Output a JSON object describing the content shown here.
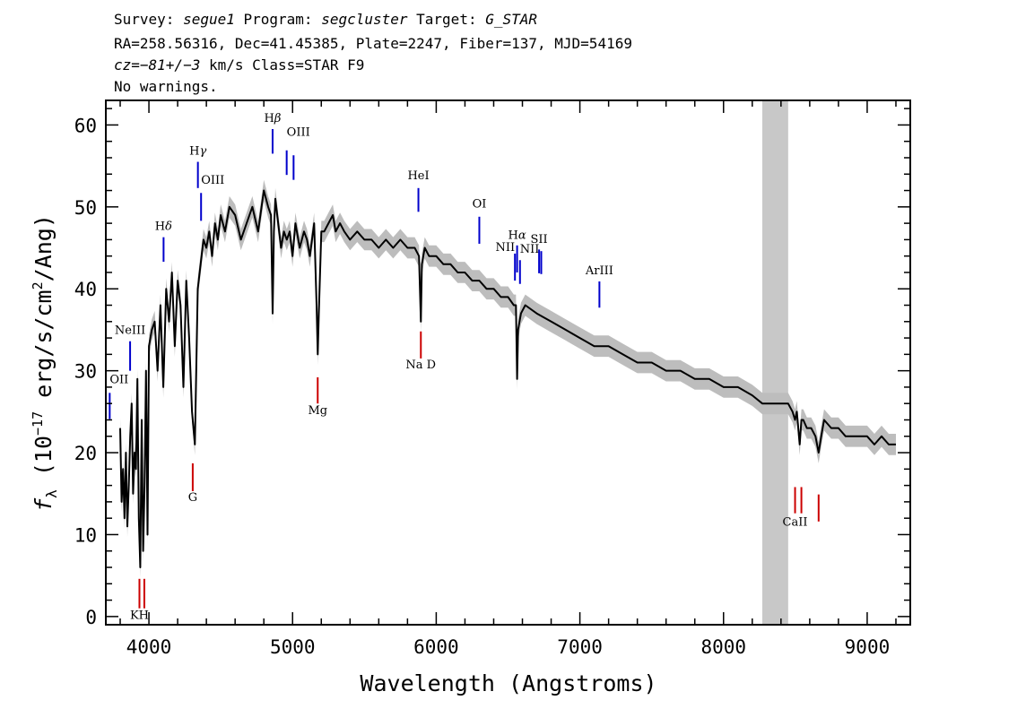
{
  "header": {
    "line1": {
      "a": "Survey: ",
      "b": "segue1",
      "c": " Program: ",
      "d": "segcluster",
      "e": " Target: ",
      "f": "G_STAR"
    },
    "line2": "RA=258.56316, Dec=41.45385, Plate=2247, Fiber=137, MJD=54169",
    "line3": {
      "a": "cz=−81+/−3",
      "b": " km/s Class=STAR F9"
    },
    "line4": "No warnings."
  },
  "colors": {
    "flux": "#000000",
    "error": "#bdbdbd",
    "emission": "#0000cc",
    "absorption": "#cc0000",
    "masked": "#c8c8c8"
  },
  "chart_data": {
    "type": "line",
    "title": "",
    "xlabel": "Wavelength (Angstroms)",
    "ylabel": {
      "f": "f",
      "sub": "λ",
      "a": " (10",
      "sup_exp": "−17",
      "b": " erg/s/cm",
      "sup2": "2",
      "c": "/Ang)"
    },
    "xlim": [
      3700,
      9300
    ],
    "ylim": [
      -1,
      63
    ],
    "xticks": [
      4000,
      5000,
      6000,
      7000,
      8000,
      9000
    ],
    "yticks": [
      0,
      10,
      20,
      30,
      40,
      50,
      60
    ],
    "masked_region": [
      8270,
      8450
    ],
    "series": [
      {
        "x": [
          3800,
          3810,
          3820,
          3830,
          3840,
          3850,
          3860,
          3870,
          3880,
          3890,
          3900,
          3910,
          3920,
          3930,
          3940,
          3950,
          3960,
          3970,
          3980,
          3990,
          4000,
          4020,
          4040,
          4060,
          4080,
          4100,
          4120,
          4140,
          4160,
          4180,
          4200,
          4220,
          4240,
          4260,
          4280,
          4300,
          4320,
          4340,
          4360,
          4380,
          4400,
          4420,
          4440,
          4460,
          4480,
          4500,
          4530,
          4560,
          4600,
          4640,
          4680,
          4720,
          4760,
          4800,
          4830,
          4850,
          4861,
          4870,
          4880,
          4900,
          4920,
          4940,
          4960,
          4980,
          5000,
          5020,
          5050,
          5080,
          5100,
          5120,
          5150,
          5167,
          5175,
          5183,
          5200,
          5220,
          5250,
          5280,
          5300,
          5330,
          5360,
          5400,
          5450,
          5500,
          5550,
          5600,
          5650,
          5700,
          5750,
          5800,
          5850,
          5880,
          5893,
          5900,
          5920,
          5950,
          6000,
          6050,
          6100,
          6150,
          6200,
          6250,
          6300,
          6350,
          6400,
          6450,
          6500,
          6540,
          6555,
          6563,
          6570,
          6590,
          6620,
          6700,
          6800,
          6900,
          7000,
          7100,
          7200,
          7300,
          7400,
          7500,
          7600,
          7700,
          7800,
          7900,
          8000,
          8100,
          8200,
          8270,
          8450,
          8480,
          8498,
          8510,
          8530,
          8542,
          8555,
          8580,
          8610,
          8640,
          8662,
          8680,
          8700,
          8750,
          8800,
          8850,
          8900,
          8950,
          9000,
          9050,
          9100,
          9150,
          9200
        ],
        "y": [
          23,
          14,
          18,
          12,
          20,
          11,
          16,
          22,
          26,
          15,
          20,
          18,
          29,
          12,
          6,
          24,
          8,
          16,
          30,
          10,
          33,
          35,
          36,
          30,
          38,
          28,
          40,
          36,
          42,
          33,
          41,
          38,
          28,
          41,
          34,
          25,
          21,
          40,
          43,
          46,
          45,
          47,
          44,
          48,
          46,
          49,
          47,
          50,
          49,
          46,
          48,
          50,
          47,
          52,
          50,
          49,
          37,
          47,
          51,
          48,
          45,
          47,
          46,
          47,
          44,
          48,
          45,
          47,
          46,
          44,
          48,
          38,
          32,
          37,
          47,
          47,
          48,
          49,
          47,
          48,
          47,
          46,
          47,
          46,
          46,
          45,
          46,
          45,
          46,
          45,
          45,
          44,
          36,
          43,
          45,
          44,
          44,
          43,
          43,
          42,
          42,
          41,
          41,
          40,
          40,
          39,
          39,
          38,
          38,
          29,
          35,
          37,
          38,
          37,
          36,
          35,
          34,
          33,
          33,
          32,
          31,
          31,
          30,
          30,
          29,
          29,
          28,
          28,
          27,
          26,
          26,
          25,
          24,
          25,
          21,
          24,
          24,
          23,
          23,
          22,
          20,
          22,
          24,
          23,
          23,
          22,
          22,
          22,
          22,
          21,
          22,
          21,
          21
        ]
      }
    ],
    "error_band": 1.3,
    "line_markers": {
      "emission": [
        {
          "label": "OII",
          "x": 3727,
          "y_top": 27.3,
          "y_bot": 24.1,
          "label_y": 28.5,
          "anchor": "start"
        },
        {
          "label": "NeIII",
          "x": 3869,
          "y_top": 33.6,
          "y_bot": 30.0,
          "label_y": 34.5,
          "anchor": "middle"
        },
        {
          "label": "OIII",
          "x": 4363,
          "y_top": 51.7,
          "y_bot": 48.3,
          "label_y": 52.8,
          "anchor": "start"
        },
        {
          "label": "HeI",
          "x": 5876,
          "y_top": 52.3,
          "y_bot": 49.4,
          "label_y": 53.4,
          "anchor": "middle"
        },
        {
          "label": "OI",
          "x": 6300,
          "y_top": 48.8,
          "y_bot": 45.5,
          "label_y": 49.9,
          "anchor": "middle"
        },
        {
          "label": "NII",
          "x": 6548,
          "y_top": 44.3,
          "y_bot": 41.0,
          "label_y": 44.6,
          "anchor": "end"
        },
        {
          "label": "NII",
          "x": 6583,
          "y_top": 43.5,
          "y_bot": 40.6,
          "label_y": 44.4,
          "anchor": "start"
        },
        {
          "label": "SII",
          "x": 6716,
          "y_top": 44.8,
          "y_bot": 41.9,
          "label_y": 45.6,
          "anchor": "middle"
        },
        {
          "label": "SII",
          "x": 6731,
          "y_top": 44.6,
          "y_bot": 41.8,
          "label_y": null,
          "anchor": "middle"
        },
        {
          "label": "ArIII",
          "x": 7136,
          "y_top": 40.9,
          "y_bot": 37.7,
          "label_y": 41.8,
          "anchor": "middle"
        },
        {
          "label": "OIII",
          "x": 4959,
          "y_top": 56.9,
          "y_bot": 53.9,
          "label_y": 58.7,
          "anchor": "start"
        },
        {
          "label": "OIII",
          "x": 5007,
          "y_top": 56.3,
          "y_bot": 53.3,
          "label_y": null,
          "anchor": "start"
        }
      ],
      "balmer": [
        {
          "label": "H",
          "greek": "δ",
          "x": 4102,
          "y_top": 46.3,
          "y_bot": 43.3,
          "label_y": 47.2
        },
        {
          "label": "H",
          "greek": "γ",
          "x": 4341,
          "y_top": 55.5,
          "y_bot": 52.3,
          "label_y": 56.4
        },
        {
          "label": "H",
          "greek": "β",
          "x": 4861,
          "y_top": 59.5,
          "y_bot": 56.5,
          "label_y": 60.4
        },
        {
          "label": "H",
          "greek": "α",
          "x": 6563,
          "y_top": 45.3,
          "y_bot": 42.0,
          "label_y": 46.1
        }
      ],
      "absorption": [
        {
          "label": "KH",
          "x": 3934,
          "y_top": 4.6,
          "y_bot": 1.0,
          "label_y": -0.3
        },
        {
          "label": "",
          "x": 3968,
          "y_top": 4.6,
          "y_bot": 1.0,
          "label_y": null
        },
        {
          "label": "G",
          "x": 4305,
          "y_top": 18.7,
          "y_bot": 15.3,
          "label_y": 14.1
        },
        {
          "label": "Mg",
          "x": 5175,
          "y_top": 29.2,
          "y_bot": 26.0,
          "label_y": 24.7
        },
        {
          "label": "Na D",
          "x": 5893,
          "y_top": 34.8,
          "y_bot": 31.5,
          "label_y": 30.3
        },
        {
          "label": "CaII",
          "x": 8498,
          "y_top": 15.8,
          "y_bot": 12.6,
          "label_y": 11.1
        },
        {
          "label": "",
          "x": 8542,
          "y_top": 15.8,
          "y_bot": 12.6,
          "label_y": null
        },
        {
          "label": "",
          "x": 8662,
          "y_top": 14.9,
          "y_bot": 11.6,
          "label_y": null
        }
      ]
    }
  }
}
